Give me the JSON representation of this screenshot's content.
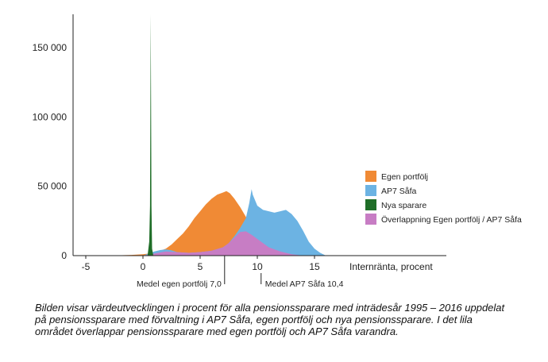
{
  "chart_data": {
    "type": "area",
    "xlabel": "Internränta, procent",
    "ylabel": "",
    "xlim": [
      -7,
      24
    ],
    "ylim": [
      0,
      175000
    ],
    "x_ticks": [
      -5,
      0,
      5,
      10,
      15
    ],
    "y_ticks": [
      0,
      50000,
      100000,
      150000
    ],
    "x_tick_labels": [
      "-5",
      "0",
      "5",
      "10",
      "15"
    ],
    "y_tick_labels": [
      "0",
      "50 000",
      "100 000",
      "150 000"
    ],
    "legend_position": "right",
    "series": [
      {
        "name": "Egen portfölj",
        "color": "#f08a35",
        "points": [
          [
            -3,
            0
          ],
          [
            -1,
            500
          ],
          [
            0,
            1000
          ],
          [
            1,
            2000
          ],
          [
            2,
            5000
          ],
          [
            2.5,
            8000
          ],
          [
            3,
            12000
          ],
          [
            3.5,
            16000
          ],
          [
            4,
            21000
          ],
          [
            4.5,
            27000
          ],
          [
            5,
            32000
          ],
          [
            5.5,
            37000
          ],
          [
            6,
            41000
          ],
          [
            6.5,
            44000
          ],
          [
            7,
            45500
          ],
          [
            7.3,
            46500
          ],
          [
            7.6,
            45000
          ],
          [
            8,
            41000
          ],
          [
            8.5,
            35000
          ],
          [
            9,
            28000
          ],
          [
            9.5,
            20000
          ],
          [
            10,
            14000
          ],
          [
            10.5,
            9000
          ],
          [
            11,
            5000
          ],
          [
            12,
            2000
          ],
          [
            13,
            500
          ],
          [
            14,
            0
          ]
        ]
      },
      {
        "name": "AP7 Såfa",
        "color": "#6cb3e3",
        "points": [
          [
            0,
            0
          ],
          [
            0.5,
            1500
          ],
          [
            1,
            3000
          ],
          [
            1.5,
            4000
          ],
          [
            2,
            4500
          ],
          [
            2.5,
            3800
          ],
          [
            3,
            2500
          ],
          [
            4,
            2000
          ],
          [
            5,
            2500
          ],
          [
            6,
            3500
          ],
          [
            7,
            6000
          ],
          [
            7.5,
            9000
          ],
          [
            8,
            14000
          ],
          [
            8.5,
            20000
          ],
          [
            9,
            27000
          ],
          [
            9.3,
            38000
          ],
          [
            9.5,
            48000
          ],
          [
            9.6,
            44000
          ],
          [
            10,
            36000
          ],
          [
            10.5,
            33000
          ],
          [
            11,
            32000
          ],
          [
            11.5,
            31000
          ],
          [
            12,
            32000
          ],
          [
            12.5,
            33000
          ],
          [
            13,
            30000
          ],
          [
            13.5,
            25000
          ],
          [
            14,
            18000
          ],
          [
            14.5,
            10000
          ],
          [
            15,
            5000
          ],
          [
            15.5,
            2000
          ],
          [
            16,
            0
          ]
        ]
      },
      {
        "name": "Nya sparare",
        "color": "#1f6e28",
        "points": [
          [
            0.4,
            0
          ],
          [
            0.55,
            10000
          ],
          [
            0.62,
            36000
          ],
          [
            0.68,
            174000
          ],
          [
            0.74,
            36000
          ],
          [
            0.8,
            5000
          ],
          [
            0.9,
            0
          ]
        ]
      },
      {
        "name": "Överlappning Egen portfölj / AP7 Såfa",
        "color": "#c77dc4",
        "points": [
          [
            0,
            0
          ],
          [
            1,
            1500
          ],
          [
            2,
            3000
          ],
          [
            3,
            2500
          ],
          [
            4,
            2000
          ],
          [
            5,
            2500
          ],
          [
            6,
            3500
          ],
          [
            7,
            6000
          ],
          [
            7.5,
            9000
          ],
          [
            8,
            13000
          ],
          [
            8.5,
            17000
          ],
          [
            9,
            17500
          ],
          [
            9.5,
            15000
          ],
          [
            10,
            12000
          ],
          [
            10.5,
            9000
          ],
          [
            11,
            6000
          ],
          [
            12,
            3000
          ],
          [
            13,
            1000
          ],
          [
            14,
            0
          ]
        ]
      }
    ],
    "annotations": [
      {
        "text": "Medel egen portfölj 7,0",
        "x": 7.0
      },
      {
        "text": "Medel AP7 Såfa 10,4",
        "x": 10.4
      }
    ]
  },
  "caption": "Bilden visar värdeutvecklingen i procent för alla pensionssparare med inträdesår 1995 – 2016 uppdelat på pensionssparare med förvaltning i AP7 Såfa, egen portfölj och nya pensionssparare. I det lila området överlappar pensionssparare med egen portfölj och AP7 Såfa varandra."
}
